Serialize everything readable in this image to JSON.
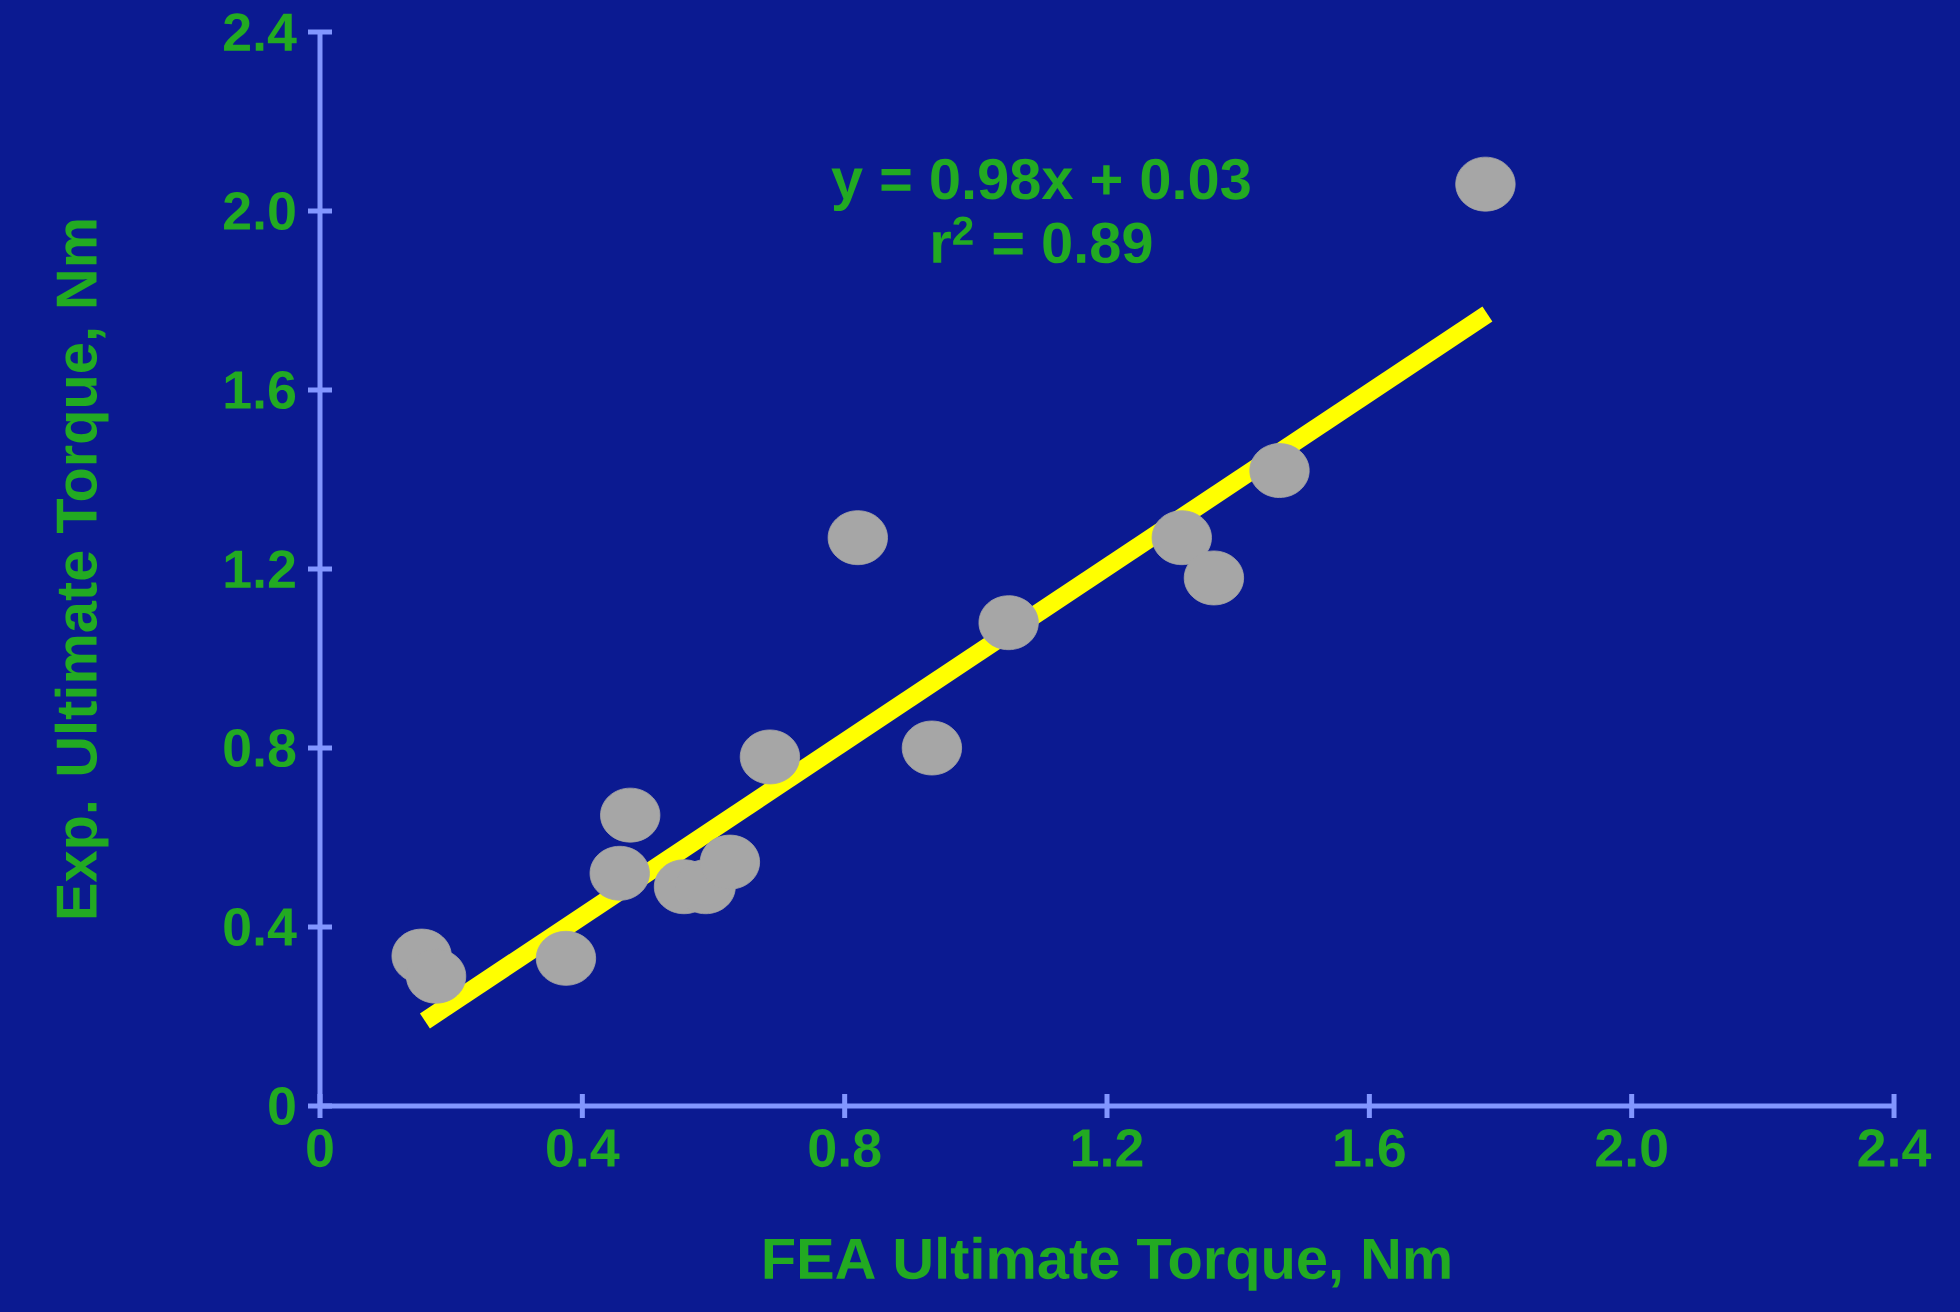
{
  "chart_data": {
    "type": "scatter",
    "xlabel": "FEA Ultimate Torque, Nm",
    "ylabel": "Exp. Ultimate Torque, Nm",
    "annotations": [
      "y = 0.98x + 0.03",
      "r$^{2}$ = 0.89"
    ],
    "xlim": [
      0,
      2.4
    ],
    "ylim": [
      0,
      2.4
    ],
    "xticks": [
      0,
      {
        "value": 0.4,
        "label": "0.4"
      },
      {
        "value": 0.8,
        "label": "0.8"
      },
      {
        "value": 1.2,
        "label": "1.2"
      },
      {
        "value": 1.6,
        "label": "1.6"
      },
      {
        "value": 2.0,
        "label": "2.0"
      },
      {
        "value": 2.4,
        "label": "2.4"
      }
    ],
    "yticks": [
      0,
      {
        "value": 0.4,
        "label": "0.4"
      },
      {
        "value": 0.8,
        "label": "0.8"
      },
      {
        "value": 1.2,
        "label": "1.2"
      },
      {
        "value": 1.6,
        "label": "1.6"
      },
      {
        "value": 2.0,
        "label": "2.0"
      },
      {
        "value": 2.4,
        "label": "2.4"
      }
    ],
    "grid": false,
    "series": [
      {
        "color": "#a6a6a6",
        "x": [
          0.155,
          0.177,
          0.375,
          0.457,
          0.473,
          0.555,
          0.588,
          0.625,
          0.686,
          0.82,
          0.933,
          1.05,
          1.314,
          1.363,
          1.463,
          1.777
        ],
        "values": [
          0.335,
          0.29,
          0.33,
          0.52,
          0.65,
          0.49,
          0.49,
          0.545,
          0.78,
          1.27,
          0.8,
          1.08,
          1.27,
          1.18,
          1.42,
          2.06
        ]
      },
      {
        "type": "line",
        "color": "#ffff00",
        "marker": "none",
        "x": [
          0.16,
          1.78
        ],
        "values": [
          0.19,
          1.77
        ]
      }
    ]
  }
}
